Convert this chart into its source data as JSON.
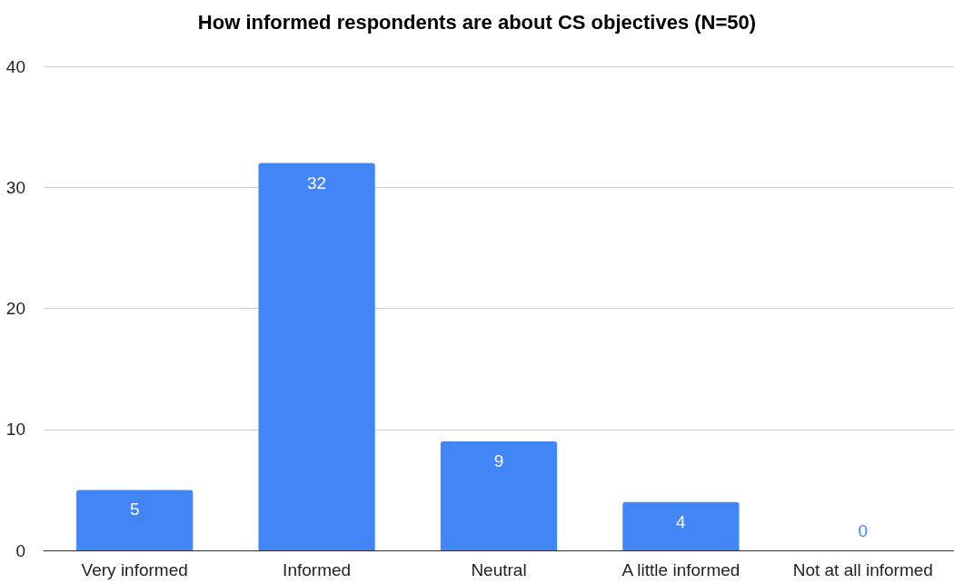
{
  "chart_data": {
    "type": "bar",
    "title": "How informed respondents are about CS objectives (N=50)",
    "categories": [
      "Very informed",
      "Informed",
      "Neutral",
      "A little informed",
      "Not at all informed"
    ],
    "values": [
      5,
      32,
      9,
      4,
      0
    ],
    "color": "#4285f4",
    "ylim": [
      0,
      40
    ],
    "yticks": [
      0,
      10,
      20,
      30,
      40
    ],
    "grid": "y",
    "data_labels": true
  }
}
